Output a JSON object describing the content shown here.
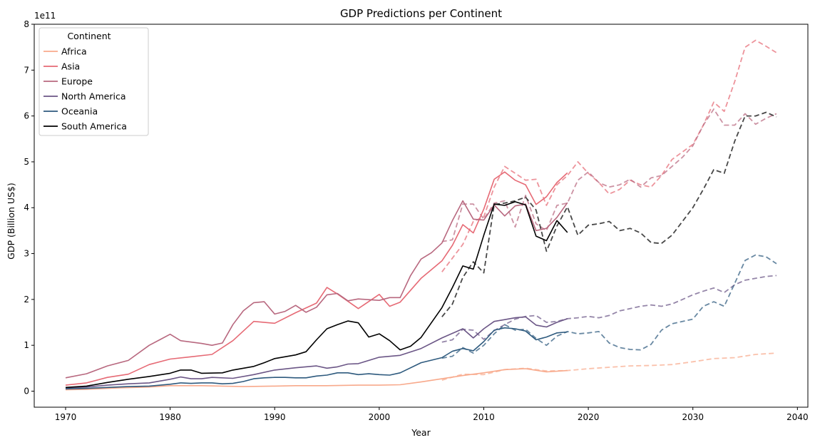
{
  "chart_data": {
    "type": "line",
    "title": "GDP Predictions per Continent",
    "xlabel": "Year",
    "ylabel": "GDP (Billion US$)",
    "offset_text": "1e11",
    "xlim": [
      1967,
      2041
    ],
    "ylim": [
      -0.35,
      8.0
    ],
    "xticks": [
      1970,
      1980,
      1990,
      2000,
      2010,
      2020,
      2030,
      2040
    ],
    "yticks": [
      0,
      1,
      2,
      3,
      4,
      5,
      6,
      7,
      8
    ],
    "y_unit_multiplier": "1e11",
    "grid": false,
    "legend": {
      "title": "Continent",
      "placement": "top-left"
    },
    "series": [
      {
        "name": "Africa",
        "color": "#f8a98b",
        "actual": {
          "x": [
            1970,
            1972,
            1975,
            1978,
            1980,
            1983,
            1985,
            1987,
            1990,
            1992,
            1995,
            1998,
            2000,
            2002,
            2004,
            2006,
            2008,
            2010,
            2012,
            2014,
            2016,
            2018
          ],
          "y": [
            0.03,
            0.04,
            0.07,
            0.09,
            0.12,
            0.12,
            0.11,
            0.1,
            0.11,
            0.12,
            0.12,
            0.13,
            0.13,
            0.14,
            0.2,
            0.27,
            0.34,
            0.4,
            0.47,
            0.49,
            0.42,
            0.45
          ]
        },
        "predicted": {
          "x": [
            2006,
            2008,
            2010,
            2012,
            2014,
            2016,
            2018,
            2020,
            2022,
            2024,
            2026,
            2028,
            2030,
            2032,
            2034,
            2036,
            2038
          ],
          "y": [
            0.24,
            0.37,
            0.36,
            0.47,
            0.5,
            0.44,
            0.45,
            0.49,
            0.52,
            0.55,
            0.56,
            0.58,
            0.64,
            0.71,
            0.73,
            0.8,
            0.83
          ]
        }
      },
      {
        "name": "Asia",
        "color": "#e66a75",
        "actual": {
          "x": [
            1970,
            1972,
            1974,
            1976,
            1978,
            1980,
            1982,
            1984,
            1986,
            1988,
            1990,
            1992,
            1994,
            1995,
            1996,
            1998,
            2000,
            2001,
            2002,
            2004,
            2006,
            2007,
            2008,
            2009,
            2010,
            2011,
            2012,
            2013,
            2014,
            2015,
            2016,
            2017,
            2018
          ],
          "y": [
            0.13,
            0.18,
            0.3,
            0.37,
            0.58,
            0.7,
            0.75,
            0.8,
            1.1,
            1.52,
            1.48,
            1.71,
            1.92,
            2.26,
            2.12,
            1.8,
            2.11,
            1.85,
            1.94,
            2.46,
            2.84,
            3.18,
            3.63,
            3.45,
            3.97,
            4.62,
            4.78,
            4.6,
            4.5,
            4.07,
            4.24,
            4.55,
            4.76
          ]
        },
        "predicted": {
          "x": [
            2006,
            2008,
            2009,
            2010,
            2011,
            2012,
            2013,
            2014,
            2015,
            2016,
            2017,
            2018,
            2019,
            2020,
            2021,
            2022,
            2023,
            2024,
            2025,
            2026,
            2027,
            2028,
            2030,
            2031,
            2032,
            2033,
            2034,
            2035,
            2036,
            2037,
            2038
          ],
          "y": [
            2.6,
            3.2,
            3.7,
            3.8,
            4.45,
            4.9,
            4.75,
            4.6,
            4.62,
            4.05,
            4.5,
            4.7,
            5.0,
            4.75,
            4.55,
            4.3,
            4.4,
            4.6,
            4.5,
            4.45,
            4.7,
            5.05,
            5.38,
            5.8,
            6.3,
            6.1,
            6.75,
            7.5,
            7.65,
            7.52,
            7.38
          ]
        }
      },
      {
        "name": "Europe",
        "color": "#b8687f",
        "actual": {
          "x": [
            1970,
            1972,
            1974,
            1976,
            1978,
            1979,
            1980,
            1981,
            1983,
            1984,
            1985,
            1986,
            1987,
            1988,
            1989,
            1990,
            1991,
            1992,
            1993,
            1994,
            1995,
            1996,
            1997,
            1998,
            2000,
            2001,
            2002,
            2003,
            2004,
            2005,
            2006,
            2007,
            2008,
            2009,
            2010,
            2011,
            2012,
            2013,
            2014,
            2015,
            2016,
            2017,
            2018
          ],
          "y": [
            0.29,
            0.38,
            0.55,
            0.67,
            1.0,
            1.12,
            1.24,
            1.1,
            1.04,
            1.0,
            1.05,
            1.45,
            1.75,
            1.93,
            1.95,
            1.68,
            1.74,
            1.87,
            1.72,
            1.83,
            2.1,
            2.13,
            1.97,
            2.01,
            1.98,
            2.04,
            2.04,
            2.52,
            2.88,
            3.02,
            3.23,
            3.72,
            4.15,
            3.75,
            3.73,
            4.06,
            3.82,
            4.04,
            4.08,
            3.5,
            3.55,
            3.79,
            4.11
          ]
        },
        "predicted": {
          "x": [
            2006,
            2007,
            2008,
            2009,
            2010,
            2011,
            2012,
            2013,
            2014,
            2015,
            2016,
            2017,
            2018,
            2019,
            2020,
            2021,
            2022,
            2023,
            2024,
            2025,
            2026,
            2027,
            2028,
            2029,
            2030,
            2031,
            2032,
            2033,
            2034,
            2035,
            2036,
            2037,
            2038
          ],
          "y": [
            3.26,
            3.3,
            4.08,
            4.08,
            3.75,
            4.1,
            4.15,
            3.58,
            4.27,
            3.65,
            3.5,
            4.05,
            4.1,
            4.6,
            4.78,
            4.55,
            4.45,
            4.5,
            4.62,
            4.45,
            4.65,
            4.7,
            4.9,
            5.1,
            5.35,
            5.8,
            6.15,
            5.8,
            5.8,
            6.05,
            5.82,
            5.95,
            6.05
          ]
        }
      },
      {
        "name": "North America",
        "color": "#6b5686",
        "actual": {
          "x": [
            1970,
            1972,
            1974,
            1976,
            1978,
            1980,
            1981,
            1982,
            1983,
            1984,
            1986,
            1988,
            1990,
            1992,
            1994,
            1995,
            1996,
            1997,
            1998,
            2000,
            2002,
            2004,
            2006,
            2008,
            2009,
            2010,
            2011,
            2012,
            2013,
            2014,
            2015,
            2016,
            2017,
            2018
          ],
          "y": [
            0.07,
            0.09,
            0.13,
            0.16,
            0.18,
            0.26,
            0.31,
            0.27,
            0.27,
            0.3,
            0.28,
            0.36,
            0.46,
            0.51,
            0.55,
            0.5,
            0.53,
            0.59,
            0.6,
            0.74,
            0.78,
            0.93,
            1.16,
            1.36,
            1.16,
            1.36,
            1.52,
            1.56,
            1.6,
            1.62,
            1.44,
            1.4,
            1.5,
            1.58
          ]
        },
        "predicted": {
          "x": [
            2006,
            2007,
            2008,
            2009,
            2010,
            2011,
            2012,
            2013,
            2014,
            2015,
            2016,
            2017,
            2018,
            2019,
            2020,
            2021,
            2022,
            2023,
            2024,
            2025,
            2026,
            2027,
            2028,
            2029,
            2030,
            2031,
            2032,
            2033,
            2034,
            2035,
            2036,
            2037,
            2038
          ],
          "y": [
            1.07,
            1.12,
            1.35,
            1.33,
            1.13,
            1.32,
            1.45,
            1.57,
            1.63,
            1.65,
            1.5,
            1.52,
            1.58,
            1.6,
            1.63,
            1.6,
            1.65,
            1.75,
            1.8,
            1.85,
            1.88,
            1.85,
            1.9,
            2.0,
            2.1,
            2.18,
            2.25,
            2.15,
            2.32,
            2.42,
            2.46,
            2.5,
            2.52
          ]
        }
      },
      {
        "name": "Oceania",
        "color": "#2e5a7e",
        "actual": {
          "x": [
            1970,
            1972,
            1974,
            1976,
            1978,
            1980,
            1981,
            1982,
            1983,
            1984,
            1985,
            1986,
            1987,
            1988,
            1989,
            1990,
            1991,
            1992,
            1993,
            1994,
            1995,
            1996,
            1997,
            1998,
            1999,
            2000,
            2001,
            2002,
            2004,
            2006,
            2007,
            2008,
            2009,
            2010,
            2011,
            2012,
            2013,
            2014,
            2015,
            2016,
            2017,
            2018
          ],
          "y": [
            0.05,
            0.06,
            0.08,
            0.1,
            0.11,
            0.15,
            0.18,
            0.17,
            0.18,
            0.18,
            0.16,
            0.17,
            0.21,
            0.27,
            0.29,
            0.3,
            0.3,
            0.29,
            0.29,
            0.33,
            0.35,
            0.4,
            0.4,
            0.36,
            0.38,
            0.36,
            0.35,
            0.4,
            0.62,
            0.73,
            0.87,
            0.93,
            0.88,
            1.08,
            1.33,
            1.38,
            1.36,
            1.31,
            1.12,
            1.18,
            1.27,
            1.29
          ]
        },
        "predicted": {
          "x": [
            2006,
            2007,
            2008,
            2009,
            2010,
            2011,
            2012,
            2013,
            2014,
            2015,
            2016,
            2017,
            2018,
            2019,
            2020,
            2021,
            2022,
            2023,
            2024,
            2025,
            2026,
            2027,
            2028,
            2029,
            2030,
            2031,
            2032,
            2033,
            2034,
            2035,
            2036,
            2037,
            2038
          ],
          "y": [
            0.72,
            0.76,
            0.95,
            0.83,
            1.0,
            1.25,
            1.45,
            1.33,
            1.35,
            1.15,
            1.0,
            1.2,
            1.3,
            1.25,
            1.27,
            1.3,
            1.05,
            0.95,
            0.91,
            0.9,
            1.02,
            1.33,
            1.47,
            1.52,
            1.57,
            1.85,
            1.95,
            1.85,
            2.35,
            2.85,
            2.97,
            2.93,
            2.78
          ]
        }
      },
      {
        "name": "South America",
        "color": "#000000",
        "actual": {
          "x": [
            1970,
            1972,
            1974,
            1976,
            1978,
            1980,
            1981,
            1982,
            1983,
            1985,
            1986,
            1988,
            1989,
            1990,
            1992,
            1993,
            1994,
            1995,
            1996,
            1997,
            1998,
            1999,
            2000,
            2001,
            2002,
            2003,
            2004,
            2006,
            2007,
            2008,
            2009,
            2010,
            2011,
            2012,
            2013,
            2014,
            2015,
            2016,
            2017,
            2018
          ],
          "y": [
            0.08,
            0.11,
            0.19,
            0.26,
            0.32,
            0.39,
            0.46,
            0.46,
            0.39,
            0.4,
            0.46,
            0.54,
            0.62,
            0.71,
            0.79,
            0.86,
            1.12,
            1.36,
            1.45,
            1.53,
            1.49,
            1.18,
            1.25,
            1.1,
            0.9,
            0.98,
            1.17,
            1.82,
            2.26,
            2.73,
            2.66,
            3.4,
            4.08,
            4.05,
            4.13,
            4.06,
            3.38,
            3.28,
            3.72,
            3.46
          ]
        },
        "predicted": {
          "x": [
            2006,
            2007,
            2008,
            2009,
            2010,
            2011,
            2012,
            2013,
            2014,
            2015,
            2016,
            2017,
            2018,
            2019,
            2020,
            2021,
            2022,
            2023,
            2024,
            2025,
            2026,
            2027,
            2028,
            2029,
            2030,
            2031,
            2032,
            2033,
            2034,
            2035,
            2036,
            2037,
            2038
          ],
          "y": [
            1.62,
            1.9,
            2.48,
            2.82,
            2.58,
            4.07,
            4.1,
            4.15,
            4.23,
            3.95,
            3.05,
            3.6,
            4.02,
            3.4,
            3.62,
            3.65,
            3.7,
            3.5,
            3.55,
            3.45,
            3.24,
            3.22,
            3.4,
            3.7,
            4.0,
            4.4,
            4.83,
            4.75,
            5.45,
            6.0,
            6.0,
            6.08,
            5.98
          ]
        }
      }
    ]
  }
}
